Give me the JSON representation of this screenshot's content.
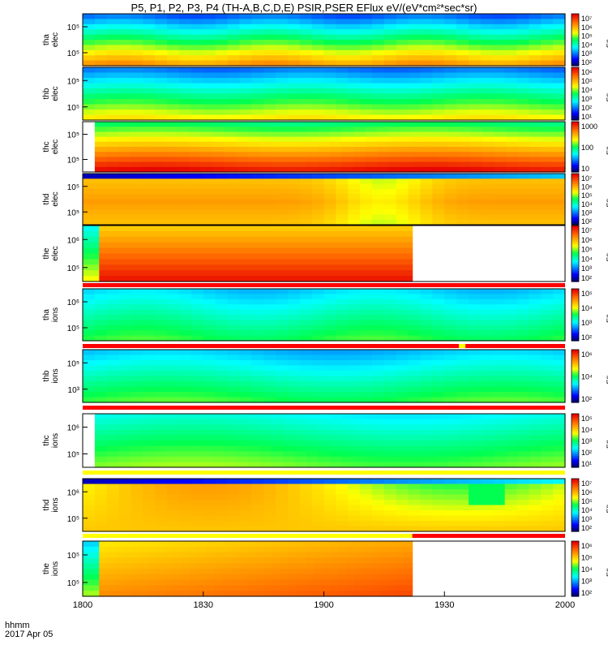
{
  "title": "P5, P1, P2, P3, P4 (TH-A,B,C,D,E) PSIR,PSER EFlux eV/(eV*cm²*sec*sr)",
  "chart_data": {
    "type": "heatmap",
    "title": "P5, P1, P2, P3, P4 (TH-A,B,C,D,E) PSIR,PSER EFlux eV/(eV*cm²*sec*sr)",
    "x_ticks": [
      "1800",
      "1830",
      "1900",
      "1930",
      "2000"
    ],
    "footer": {
      "line1": "hhmm",
      "line2": "2017 Apr 05"
    },
    "colorbar_label": "Eflux",
    "panels": [
      {
        "label1": "tha",
        "label2": "elec",
        "yticks": [
          "10⁵",
          "10⁵"
        ],
        "cbar_ticks": [
          "10⁷",
          "10⁶",
          "10⁵",
          "10⁴",
          "10³",
          "10²"
        ],
        "pattern": "tha_elec"
      },
      {
        "label1": "thb",
        "label2": "elec",
        "yticks": [
          "10⁵",
          "10⁵"
        ],
        "cbar_ticks": [
          "10⁶",
          "10⁵",
          "10⁴",
          "10³",
          "10²",
          "10¹"
        ],
        "pattern": "thb_elec"
      },
      {
        "label1": "thc",
        "label2": "elec",
        "yticks": [
          "10⁵",
          "10⁵"
        ],
        "cbar_ticks": [
          "1000",
          "100",
          "10"
        ],
        "pattern": "thc_elec",
        "data_start": "1803"
      },
      {
        "label1": "thd",
        "label2": "elec",
        "yticks": [
          "10⁵",
          "10⁵"
        ],
        "cbar_ticks": [
          "10⁷",
          "10⁶",
          "10⁵",
          "10⁴",
          "10³",
          "10²"
        ],
        "pattern": "thd_elec"
      },
      {
        "label1": "the",
        "label2": "elec",
        "yticks": [
          "10⁶",
          "10⁵"
        ],
        "cbar_ticks": [
          "10⁷",
          "10⁶",
          "10⁵",
          "10⁴",
          "10³",
          "10²"
        ],
        "pattern": "the_elec",
        "data_end": "1922"
      },
      {
        "label1": "tha",
        "label2": "ions",
        "yticks": [
          "10⁶",
          "10⁵"
        ],
        "cbar_ticks": [
          "10⁵",
          "10⁴",
          "10³",
          "10²"
        ],
        "pattern": "tha_ions"
      },
      {
        "label1": "thb",
        "label2": "ions",
        "yticks": [
          "10⁵",
          "10³"
        ],
        "cbar_ticks": [
          "10⁶",
          "10⁴",
          "10²"
        ],
        "pattern": "thb_ions"
      },
      {
        "label1": "thc",
        "label2": "ions",
        "yticks": [
          "10⁶",
          "10⁵"
        ],
        "cbar_ticks": [
          "10⁵",
          "10⁴",
          "10³",
          "10²",
          "10¹"
        ],
        "pattern": "thc_ions",
        "data_start": "1803"
      },
      {
        "label1": "thd",
        "label2": "ions",
        "yticks": [
          "10⁶",
          "10⁵"
        ],
        "cbar_ticks": [
          "10⁷",
          "10⁶",
          "10⁵",
          "10⁴",
          "10³",
          "10²"
        ],
        "pattern": "thd_ions"
      },
      {
        "label1": "the",
        "label2": "ions",
        "yticks": [
          "10⁵",
          "10⁵"
        ],
        "cbar_ticks": [
          "10⁶",
          "10⁵",
          "10⁴",
          "10³",
          "10²"
        ],
        "pattern": "the_ions",
        "data_end": "1922"
      }
    ],
    "status_bars": [
      {
        "after_panel": 4,
        "color": "#ff0000"
      },
      {
        "after_panel": 5,
        "color": "#ff0000",
        "marker_color": "#ffff00"
      },
      {
        "after_panel": 6,
        "color": "#ff0000"
      },
      {
        "after_panel": 7,
        "color": "#ffff00"
      },
      {
        "after_panel": 8,
        "color_left": "#ffff00",
        "color_right": "#ff0000",
        "split_at": "1922"
      }
    ]
  }
}
